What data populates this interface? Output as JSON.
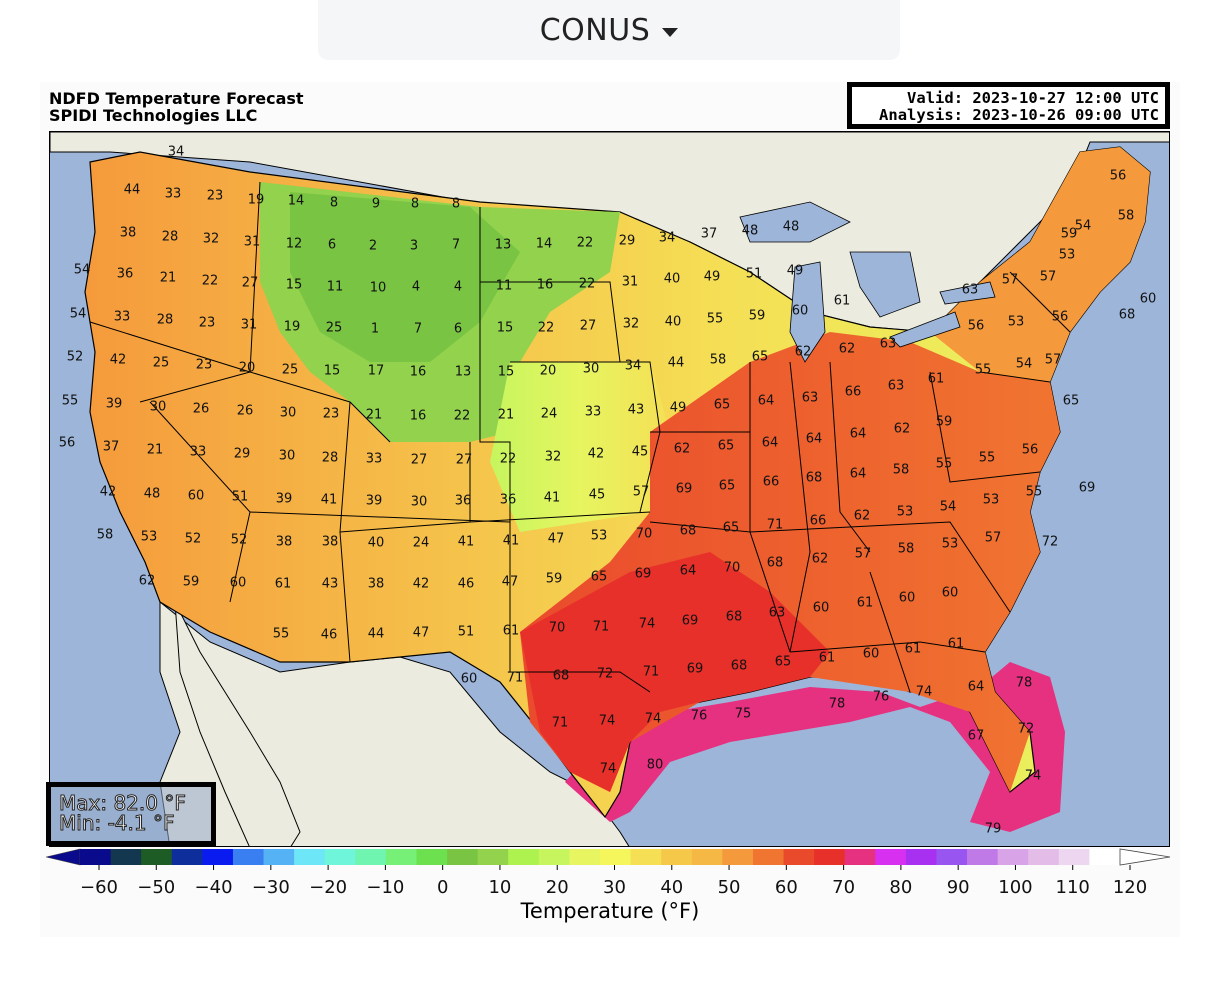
{
  "region_selector": {
    "label": "CONUS"
  },
  "figure": {
    "title_line1": "NDFD Temperature Forecast",
    "title_line2": "SPIDI Technologies LLC",
    "valid": "Valid: 2023-10-27 12:00 UTC",
    "analysis": "Analysis: 2023-10-26 09:00 UTC",
    "max_text": "Max: 82.0 °F",
    "min_text": "Min: -4.1 °F"
  },
  "colorbar": {
    "label": "Temperature (°F)",
    "ticks": [
      "−60",
      "−50",
      "−40",
      "−30",
      "−20",
      "−10",
      "0",
      "10",
      "20",
      "30",
      "40",
      "50",
      "60",
      "70",
      "80",
      "90",
      "100",
      "110",
      "120"
    ],
    "tick_values": [
      -60,
      -50,
      -40,
      -30,
      -20,
      -10,
      0,
      10,
      20,
      30,
      40,
      50,
      60,
      70,
      80,
      90,
      100,
      110,
      120
    ],
    "range": [
      -60,
      120
    ],
    "bin_colors": [
      "#0a0a8c",
      "#13374f",
      "#1e5c26",
      "#0e2f9b",
      "#0a1bf0",
      "#3a7ff2",
      "#55b2f5",
      "#6de6f7",
      "#6ff5d9",
      "#6ff5b0",
      "#76f076",
      "#6ce04e",
      "#7ac444",
      "#92d24d",
      "#aef250",
      "#c6f55e",
      "#e6f560",
      "#f5f55c",
      "#f5df55",
      "#f5c84a",
      "#f5b845",
      "#f59a3c",
      "#f07530",
      "#ea4a2c",
      "#e8302a",
      "#e63080",
      "#d830f0",
      "#a830f0",
      "#9855f0",
      "#c07ae8",
      "#d9a3e8",
      "#e3bde8",
      "#edd7f0",
      "#ffffff"
    ]
  },
  "map": {
    "land_color": "#ecebdf",
    "ocean_color": "#9db5d9",
    "lake_color": "#9db5d9",
    "temperature_labels": [
      "34",
      "44",
      "33",
      "23",
      "19",
      "14",
      "8",
      "9",
      "8",
      "8",
      "38",
      "28",
      "32",
      "31",
      "12",
      "6",
      "2",
      "3",
      "7",
      "13",
      "14",
      "22",
      "29",
      "34",
      "37",
      "48",
      "48",
      "54",
      "36",
      "21",
      "22",
      "27",
      "15",
      "11",
      "10",
      "4",
      "4",
      "11",
      "16",
      "22",
      "31",
      "40",
      "49",
      "51",
      "49",
      "54",
      "33",
      "28",
      "23",
      "31",
      "19",
      "25",
      "1",
      "7",
      "6",
      "15",
      "22",
      "27",
      "32",
      "40",
      "55",
      "59",
      "60",
      "61",
      "52",
      "42",
      "25",
      "23",
      "20",
      "25",
      "15",
      "17",
      "16",
      "13",
      "15",
      "20",
      "30",
      "34",
      "44",
      "58",
      "65",
      "62",
      "62",
      "63",
      "55",
      "39",
      "30",
      "26",
      "26",
      "30",
      "23",
      "21",
      "16",
      "22",
      "21",
      "24",
      "33",
      "43",
      "49",
      "65",
      "64",
      "63",
      "66",
      "63",
      "61",
      "56",
      "37",
      "21",
      "33",
      "29",
      "30",
      "28",
      "33",
      "27",
      "27",
      "22",
      "32",
      "42",
      "45",
      "62",
      "65",
      "64",
      "64",
      "64",
      "62",
      "59",
      "42",
      "48",
      "60",
      "51",
      "39",
      "41",
      "39",
      "30",
      "36",
      "36",
      "41",
      "45",
      "57",
      "69",
      "65",
      "66",
      "68",
      "64",
      "58",
      "55",
      "55",
      "56",
      "58",
      "53",
      "52",
      "52",
      "38",
      "38",
      "40",
      "24",
      "41",
      "41",
      "47",
      "53",
      "70",
      "68",
      "65",
      "71",
      "66",
      "62",
      "53",
      "54",
      "53",
      "55",
      "69",
      "62",
      "59",
      "60",
      "61",
      "43",
      "38",
      "42",
      "46",
      "47",
      "59",
      "65",
      "69",
      "64",
      "70",
      "68",
      "62",
      "57",
      "58",
      "53",
      "57",
      "72",
      "55",
      "46",
      "44",
      "47",
      "51",
      "61",
      "70",
      "71",
      "74",
      "69",
      "68",
      "63",
      "60",
      "61",
      "60",
      "60",
      "60",
      "71",
      "68",
      "72",
      "71",
      "69",
      "68",
      "65",
      "61",
      "60",
      "61",
      "61",
      "71",
      "74",
      "74",
      "76",
      "75",
      "78",
      "76",
      "74",
      "64",
      "78",
      "72",
      "74",
      "80",
      "67",
      "74",
      "79",
      "56",
      "54",
      "58",
      "59",
      "53",
      "57",
      "57",
      "63",
      "56",
      "53",
      "56",
      "55",
      "54",
      "57",
      "60",
      "68",
      "65"
    ]
  }
}
